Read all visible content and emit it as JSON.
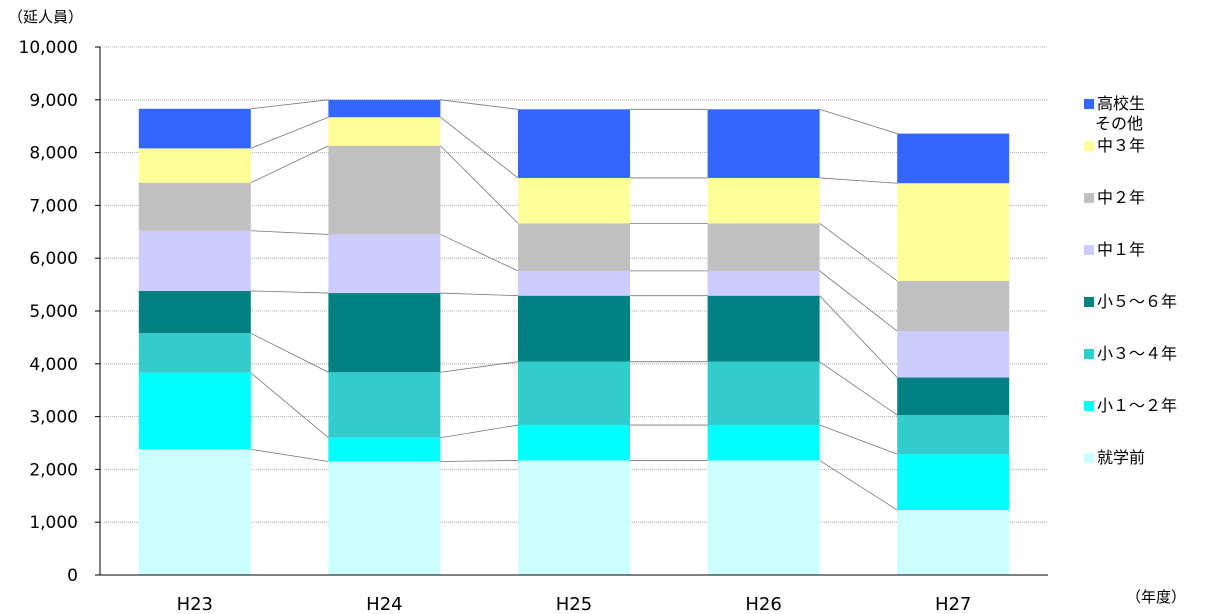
{
  "chart_data": {
    "type": "bar",
    "stacked": true,
    "title": "",
    "ylabel": "（延人員）",
    "xlabel": "（年度）",
    "ylim": [
      0,
      10000
    ],
    "yticks": [
      "0",
      "1,000",
      "2,000",
      "3,000",
      "4,000",
      "5,000",
      "6,000",
      "7,000",
      "8,000",
      "9,000",
      "10,000"
    ],
    "categories": [
      "H23",
      "H24",
      "H25",
      "H26",
      "H27"
    ],
    "grid": true,
    "legend_position": "right",
    "series_connector_lines": true,
    "series": [
      {
        "name": "就学前",
        "color": "#ccffff",
        "values": [
          2380,
          2150,
          2170,
          2170,
          1230
        ]
      },
      {
        "name": "小１～２年",
        "color": "#00ffff",
        "values": [
          1450,
          450,
          670,
          670,
          1060
        ]
      },
      {
        "name": "小３～４年",
        "color": "#33cccc",
        "values": [
          750,
          1240,
          1200,
          1200,
          740
        ]
      },
      {
        "name": "小５～６年",
        "color": "#008080",
        "values": [
          800,
          1500,
          1250,
          1250,
          710
        ]
      },
      {
        "name": "中１年",
        "color": "#ccccff",
        "values": [
          1140,
          1110,
          470,
          470,
          880
        ]
      },
      {
        "name": "中２年",
        "color": "#c0c0c0",
        "values": [
          910,
          1680,
          900,
          900,
          950
        ]
      },
      {
        "name": "中３年",
        "color": "#ffff99",
        "values": [
          650,
          540,
          860,
          860,
          1850
        ]
      },
      {
        "name": "高校生\nその他",
        "color": "#3366ff",
        "values": [
          750,
          330,
          1300,
          1300,
          940
        ]
      }
    ]
  }
}
